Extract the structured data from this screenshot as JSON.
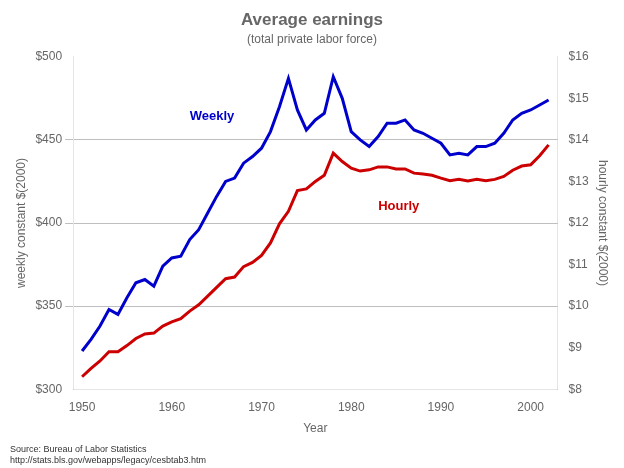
{
  "chart_data": {
    "type": "line",
    "title": "Average earnings",
    "subtitle": "(total private labor force)",
    "xlabel": "Year",
    "ylabel": "weekly constant $(2000)",
    "y2label": "hourly constant $(2000)",
    "source": [
      "Source: Bureau of Labor Statistics",
      "http://stats.bls.gov/webapps/legacy/cesbtab3.htm"
    ],
    "x": [
      1950,
      1951,
      1952,
      1953,
      1954,
      1955,
      1956,
      1957,
      1958,
      1959,
      1960,
      1961,
      1962,
      1963,
      1964,
      1965,
      1966,
      1967,
      1968,
      1969,
      1970,
      1971,
      1972,
      1973,
      1974,
      1975,
      1976,
      1977,
      1978,
      1979,
      1980,
      1981,
      1982,
      1983,
      1984,
      1985,
      1986,
      1987,
      1988,
      1989,
      1990,
      1991,
      1992,
      1993,
      1994,
      1995,
      1996,
      1997,
      1998,
      1999,
      2000,
      2001,
      2002
    ],
    "series": [
      {
        "color": "#0000cc",
        "values": [
          323,
          330,
          338,
          348,
          345,
          355,
          364,
          366,
          362,
          374,
          379,
          380,
          390,
          396,
          406,
          416,
          425,
          427,
          436,
          440,
          445,
          455,
          470,
          487,
          468,
          456,
          462,
          466,
          488,
          475,
          455,
          450,
          446,
          452,
          460,
          460,
          462,
          456,
          454,
          451,
          448,
          441,
          442,
          441,
          446,
          446,
          448,
          454,
          462,
          466,
          468,
          471,
          474
        ]
      },
      {
        "color": "#cc0000",
        "axis": "y2",
        "values": [
          8.3,
          8.5,
          8.68,
          8.9,
          8.9,
          9.05,
          9.22,
          9.33,
          9.35,
          9.52,
          9.62,
          9.7,
          9.88,
          10.03,
          10.24,
          10.45,
          10.66,
          10.7,
          10.95,
          11.05,
          11.22,
          11.52,
          11.98,
          12.28,
          12.78,
          12.82,
          13.0,
          13.15,
          13.68,
          13.48,
          13.32,
          13.25,
          13.28,
          13.35,
          13.35,
          13.3,
          13.3,
          13.2,
          13.18,
          13.15,
          13.08,
          13.02,
          13.05,
          13.01,
          13.05,
          13.02,
          13.05,
          13.12,
          13.27,
          13.37,
          13.4,
          13.62,
          13.88
        ]
      }
    ],
    "annotations": [
      {
        "text": "Weekly",
        "x": 1962,
        "y": 462,
        "color": "#0000cc"
      },
      {
        "text": "Hourly",
        "x": 1983,
        "y": 408,
        "color": "#cc0000"
      }
    ],
    "xlim": [
      1949,
      2003
    ],
    "xticks": [
      1950,
      1960,
      1970,
      1980,
      1990,
      2000
    ],
    "ylim": [
      300,
      500
    ],
    "yticks": [
      {
        "value": 300,
        "label": "$300"
      },
      {
        "value": 350,
        "label": "$350"
      },
      {
        "value": 400,
        "label": "$400"
      },
      {
        "value": 450,
        "label": "$450"
      },
      {
        "value": 500,
        "label": "$500"
      }
    ],
    "y2lim": [
      8,
      16
    ],
    "y2ticks": [
      {
        "value": 8,
        "label": "$8"
      },
      {
        "value": 9,
        "label": "$9"
      },
      {
        "value": 10,
        "label": "$10"
      },
      {
        "value": 11,
        "label": "$11"
      },
      {
        "value": 12,
        "label": "$12"
      },
      {
        "value": 13,
        "label": "$13"
      },
      {
        "value": 14,
        "label": "$14"
      },
      {
        "value": 15,
        "label": "$15"
      },
      {
        "value": 16,
        "label": "$16"
      }
    ],
    "grid": true
  }
}
